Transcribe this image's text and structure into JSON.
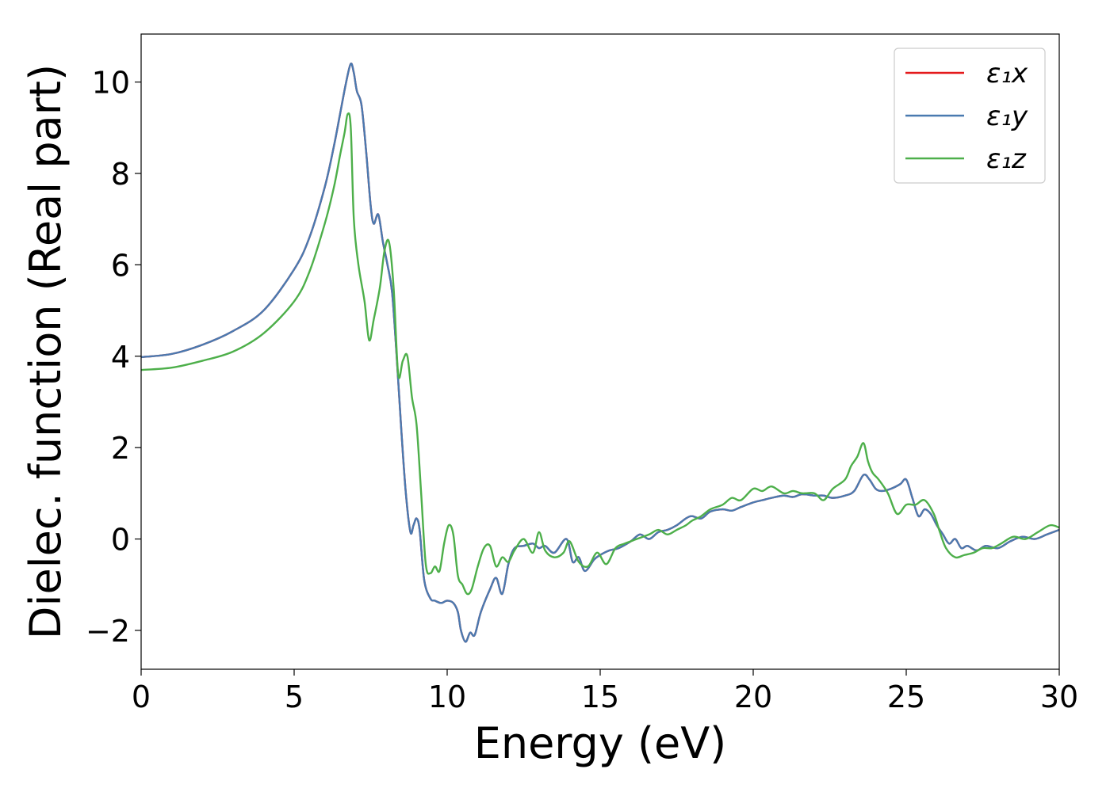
{
  "chart_data": {
    "type": "line",
    "xlabel": "Energy (eV)",
    "ylabel": "Dielec. function (Real part)",
    "xlim": [
      0,
      30
    ],
    "ylim": [
      -2.85,
      11.05
    ],
    "xticks": [
      0,
      5,
      10,
      15,
      20,
      25,
      30
    ],
    "yticks": [
      -2,
      0,
      2,
      4,
      6,
      8,
      10
    ],
    "xtick_labels": [
      "0",
      "5",
      "10",
      "15",
      "20",
      "25",
      "30"
    ],
    "ytick_labels": [
      "−2",
      "0",
      "2",
      "4",
      "6",
      "8",
      "10"
    ],
    "grid": false,
    "legend_position": "top-right",
    "series": [
      {
        "name": "ε₁x",
        "color": "#e41a1c",
        "x": [
          0,
          1,
          2,
          3,
          4,
          5,
          5.5,
          6,
          6.3,
          6.5,
          6.7,
          6.85,
          6.95,
          7.05,
          7.2,
          7.35,
          7.5,
          7.6,
          7.75,
          7.9,
          8.05,
          8.2,
          8.35,
          8.5,
          8.65,
          8.8,
          8.9,
          9.0,
          9.1,
          9.25,
          9.45,
          9.6,
          9.8,
          10.0,
          10.2,
          10.35,
          10.45,
          10.6,
          10.75,
          10.9,
          11.1,
          11.4,
          11.6,
          11.8,
          12.0,
          12.2,
          12.5,
          12.8,
          13.0,
          13.2,
          13.5,
          13.9,
          14.1,
          14.3,
          14.5,
          14.8,
          15.0,
          15.3,
          15.6,
          16.0,
          16.3,
          16.6,
          16.9,
          17.2,
          17.5,
          17.8,
          18.0,
          18.3,
          18.6,
          19.0,
          19.3,
          19.6,
          20.0,
          20.3,
          20.6,
          21.0,
          21.3,
          21.6,
          22.0,
          22.3,
          22.6,
          23.0,
          23.3,
          23.6,
          23.8,
          24.0,
          24.2,
          24.5,
          24.8,
          25.0,
          25.2,
          25.4,
          25.6,
          25.8,
          26.0,
          26.2,
          26.4,
          26.6,
          26.8,
          27.0,
          27.3,
          27.6,
          28.0,
          28.4,
          28.8,
          29.2,
          29.6,
          30.0
        ],
        "y": [
          3.98,
          4.05,
          4.25,
          4.55,
          5.0,
          5.9,
          6.6,
          7.7,
          8.6,
          9.3,
          10.0,
          10.4,
          10.2,
          9.8,
          9.5,
          8.5,
          7.3,
          6.9,
          7.1,
          6.5,
          6.0,
          5.4,
          4.0,
          2.4,
          1.0,
          0.15,
          0.3,
          0.45,
          0.2,
          -0.9,
          -1.3,
          -1.35,
          -1.4,
          -1.35,
          -1.4,
          -1.6,
          -2.0,
          -2.25,
          -2.05,
          -2.1,
          -1.6,
          -1.1,
          -0.85,
          -1.2,
          -0.55,
          -0.2,
          -0.15,
          -0.1,
          -0.2,
          -0.15,
          -0.3,
          0.0,
          -0.5,
          -0.4,
          -0.7,
          -0.45,
          -0.35,
          -0.25,
          -0.2,
          -0.05,
          0.1,
          0.0,
          0.15,
          0.2,
          0.3,
          0.45,
          0.5,
          0.45,
          0.6,
          0.65,
          0.62,
          0.7,
          0.8,
          0.85,
          0.9,
          0.95,
          0.92,
          0.98,
          0.95,
          0.95,
          0.9,
          0.95,
          1.05,
          1.4,
          1.3,
          1.1,
          1.05,
          1.1,
          1.2,
          1.3,
          0.9,
          0.5,
          0.65,
          0.55,
          0.3,
          0.1,
          -0.1,
          0.0,
          -0.2,
          -0.15,
          -0.25,
          -0.15,
          -0.2,
          -0.05,
          0.05,
          0.0,
          0.1,
          0.2
        ],
        "hidden_behind": "ε₁y"
      },
      {
        "name": "ε₁y",
        "color": "#4a7ab0",
        "x": [
          0,
          1,
          2,
          3,
          4,
          5,
          5.5,
          6,
          6.3,
          6.5,
          6.7,
          6.85,
          6.95,
          7.05,
          7.2,
          7.35,
          7.5,
          7.6,
          7.75,
          7.9,
          8.05,
          8.2,
          8.35,
          8.5,
          8.65,
          8.8,
          8.9,
          9.0,
          9.1,
          9.25,
          9.45,
          9.6,
          9.8,
          10.0,
          10.2,
          10.35,
          10.45,
          10.6,
          10.75,
          10.9,
          11.1,
          11.4,
          11.6,
          11.8,
          12.0,
          12.2,
          12.5,
          12.8,
          13.0,
          13.2,
          13.5,
          13.9,
          14.1,
          14.3,
          14.5,
          14.8,
          15.0,
          15.3,
          15.6,
          16.0,
          16.3,
          16.6,
          16.9,
          17.2,
          17.5,
          17.8,
          18.0,
          18.3,
          18.6,
          19.0,
          19.3,
          19.6,
          20.0,
          20.3,
          20.6,
          21.0,
          21.3,
          21.6,
          22.0,
          22.3,
          22.6,
          23.0,
          23.3,
          23.6,
          23.8,
          24.0,
          24.2,
          24.5,
          24.8,
          25.0,
          25.2,
          25.4,
          25.6,
          25.8,
          26.0,
          26.2,
          26.4,
          26.6,
          26.8,
          27.0,
          27.3,
          27.6,
          28.0,
          28.4,
          28.8,
          29.2,
          29.6,
          30.0
        ],
        "y": [
          3.98,
          4.05,
          4.25,
          4.55,
          5.0,
          5.9,
          6.6,
          7.7,
          8.6,
          9.3,
          10.0,
          10.4,
          10.2,
          9.8,
          9.5,
          8.5,
          7.3,
          6.9,
          7.1,
          6.5,
          6.0,
          5.4,
          4.0,
          2.4,
          1.0,
          0.15,
          0.3,
          0.45,
          0.2,
          -0.9,
          -1.3,
          -1.35,
          -1.4,
          -1.35,
          -1.4,
          -1.6,
          -2.0,
          -2.25,
          -2.05,
          -2.1,
          -1.6,
          -1.1,
          -0.85,
          -1.2,
          -0.55,
          -0.2,
          -0.15,
          -0.1,
          -0.2,
          -0.15,
          -0.3,
          0.0,
          -0.5,
          -0.4,
          -0.7,
          -0.45,
          -0.35,
          -0.25,
          -0.2,
          -0.05,
          0.1,
          0.0,
          0.15,
          0.2,
          0.3,
          0.45,
          0.5,
          0.45,
          0.6,
          0.65,
          0.62,
          0.7,
          0.8,
          0.85,
          0.9,
          0.95,
          0.92,
          0.98,
          0.95,
          0.95,
          0.9,
          0.95,
          1.05,
          1.4,
          1.3,
          1.1,
          1.05,
          1.1,
          1.2,
          1.3,
          0.9,
          0.5,
          0.65,
          0.55,
          0.3,
          0.1,
          -0.1,
          0.0,
          -0.2,
          -0.15,
          -0.25,
          -0.15,
          -0.2,
          -0.05,
          0.05,
          0.0,
          0.1,
          0.2
        ]
      },
      {
        "name": "ε₁z",
        "color": "#4daf4a",
        "x": [
          0,
          1,
          2,
          3,
          4,
          5,
          5.5,
          6,
          6.3,
          6.5,
          6.65,
          6.75,
          6.85,
          6.95,
          7.1,
          7.3,
          7.45,
          7.6,
          7.8,
          7.95,
          8.1,
          8.25,
          8.4,
          8.55,
          8.7,
          8.85,
          9.0,
          9.15,
          9.3,
          9.45,
          9.6,
          9.75,
          9.9,
          10.05,
          10.2,
          10.35,
          10.5,
          10.65,
          10.8,
          11.0,
          11.2,
          11.4,
          11.6,
          11.8,
          12.0,
          12.2,
          12.5,
          12.8,
          13.0,
          13.2,
          13.5,
          13.8,
          14.0,
          14.3,
          14.6,
          14.9,
          15.2,
          15.5,
          15.8,
          16.2,
          16.6,
          16.9,
          17.2,
          17.5,
          17.8,
          18.0,
          18.3,
          18.6,
          19.0,
          19.3,
          19.6,
          20.0,
          20.3,
          20.6,
          21.0,
          21.3,
          21.6,
          22.0,
          22.3,
          22.6,
          23.0,
          23.2,
          23.4,
          23.6,
          23.75,
          23.9,
          24.1,
          24.4,
          24.7,
          25.0,
          25.3,
          25.6,
          25.9,
          26.1,
          26.3,
          26.6,
          26.9,
          27.2,
          27.5,
          27.8,
          28.1,
          28.5,
          28.9,
          29.3,
          29.7,
          30.0
        ],
        "y": [
          3.7,
          3.75,
          3.9,
          4.1,
          4.5,
          5.2,
          5.85,
          6.9,
          7.7,
          8.4,
          8.9,
          9.3,
          9.0,
          7.0,
          6.0,
          5.2,
          4.35,
          4.8,
          5.5,
          6.3,
          6.5,
          5.5,
          3.6,
          3.9,
          4.0,
          3.1,
          2.5,
          1.0,
          -0.55,
          -0.75,
          -0.6,
          -0.7,
          -0.1,
          0.3,
          0.1,
          -0.8,
          -1.0,
          -1.2,
          -1.1,
          -0.6,
          -0.2,
          -0.15,
          -0.6,
          -0.4,
          -0.5,
          -0.25,
          0.0,
          -0.3,
          0.15,
          -0.25,
          -0.4,
          -0.3,
          -0.05,
          -0.5,
          -0.6,
          -0.3,
          -0.55,
          -0.2,
          -0.1,
          0.0,
          0.1,
          0.2,
          0.1,
          0.2,
          0.3,
          0.4,
          0.5,
          0.65,
          0.75,
          0.9,
          0.85,
          1.1,
          1.05,
          1.15,
          1.0,
          1.05,
          1.0,
          1.0,
          0.85,
          1.1,
          1.3,
          1.6,
          1.8,
          2.1,
          1.7,
          1.45,
          1.3,
          1.0,
          0.55,
          0.75,
          0.75,
          0.85,
          0.55,
          0.15,
          -0.2,
          -0.4,
          -0.35,
          -0.3,
          -0.2,
          -0.2,
          -0.1,
          0.05,
          0.0,
          0.15,
          0.3,
          0.25
        ]
      }
    ]
  }
}
